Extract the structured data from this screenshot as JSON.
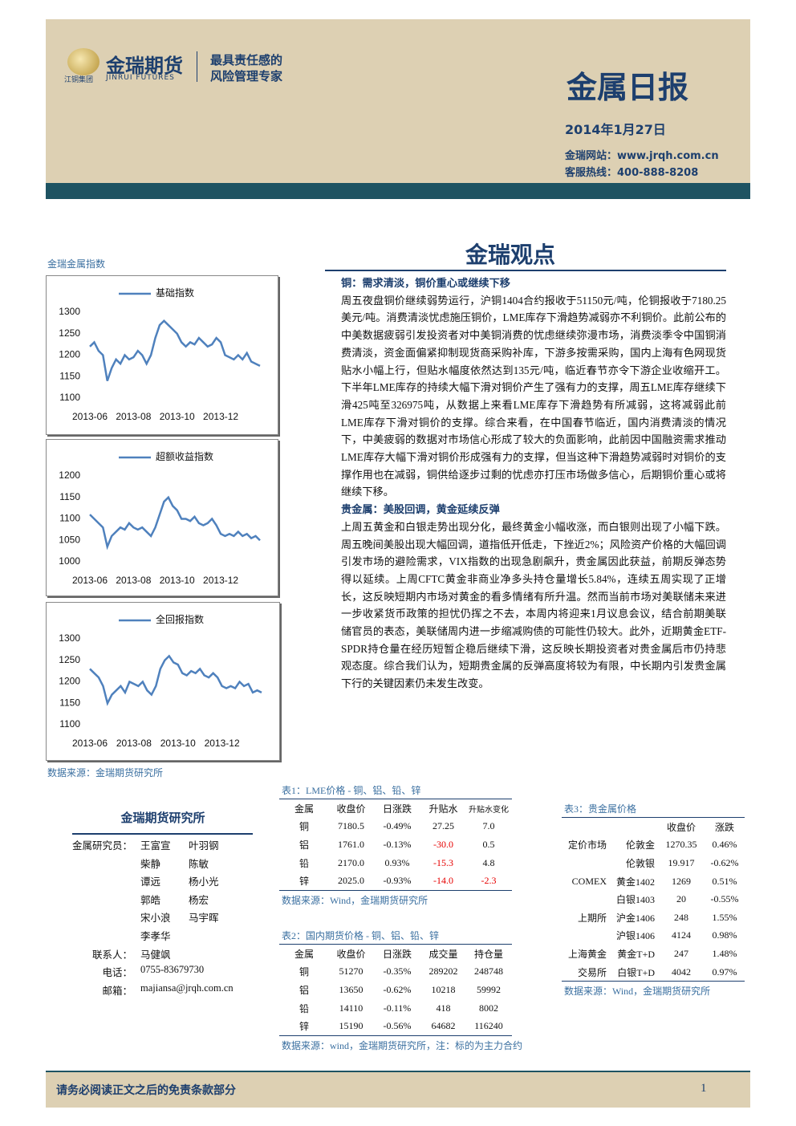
{
  "header": {
    "logo_name": "金瑞期货",
    "logo_sub": "JINRUI FUTURES",
    "group": "江铜集团",
    "slogan": [
      "最具责任感的",
      "风险管理专家"
    ],
    "title": "金属日报",
    "date": "2014年1月27日",
    "website": "金瑞网站：www.jrqh.com.cn",
    "hotline": "客服热线：400-888-8208"
  },
  "section_title": "金瑞观点",
  "chart_area_label": "金瑞金属指数",
  "chart_source": "数据来源：金瑞期货研究所",
  "chart_data": [
    {
      "type": "line",
      "series": [
        {
          "name": "基础指数",
          "color": "#4f81bd",
          "values": [
            1220,
            1230,
            1210,
            1200,
            1140,
            1170,
            1190,
            1180,
            1200,
            1190,
            1195,
            1210,
            1200,
            1180,
            1200,
            1240,
            1270,
            1280,
            1270,
            1260,
            1250,
            1230,
            1220,
            1230,
            1225,
            1240,
            1230,
            1220,
            1225,
            1240,
            1230,
            1200,
            1195,
            1190,
            1200,
            1190,
            1205,
            1185,
            1180,
            1175
          ]
        }
      ],
      "categories": [
        "2013-06",
        null,
        null,
        null,
        null,
        null,
        null,
        null,
        null,
        null,
        "2013-08",
        null,
        null,
        null,
        null,
        null,
        null,
        null,
        null,
        null,
        "2013-10",
        null,
        null,
        null,
        null,
        null,
        null,
        null,
        null,
        null,
        "2013-12",
        null,
        null,
        null,
        null,
        null,
        null,
        null,
        null,
        null
      ],
      "ylim": [
        1100,
        1300
      ],
      "yticks": [
        1100,
        1150,
        1200,
        1250,
        1300
      ]
    },
    {
      "type": "line",
      "series": [
        {
          "name": "超额收益指数",
          "color": "#4f81bd",
          "values": [
            1110,
            1100,
            1090,
            1080,
            1035,
            1060,
            1070,
            1080,
            1075,
            1090,
            1080,
            1075,
            1080,
            1070,
            1060,
            1080,
            1110,
            1140,
            1150,
            1130,
            1120,
            1100,
            1100,
            1095,
            1105,
            1090,
            1085,
            1090,
            1100,
            1085,
            1065,
            1060,
            1065,
            1060,
            1070,
            1060,
            1065,
            1055,
            1060,
            1050
          ]
        }
      ],
      "categories": [
        "2013-06",
        null,
        null,
        null,
        null,
        null,
        null,
        null,
        null,
        null,
        "2013-08",
        null,
        null,
        null,
        null,
        null,
        null,
        null,
        null,
        null,
        "2013-10",
        null,
        null,
        null,
        null,
        null,
        null,
        null,
        null,
        null,
        "2013-12",
        null,
        null,
        null,
        null,
        null,
        null,
        null,
        null,
        null
      ],
      "ylim": [
        1000,
        1200
      ],
      "yticks": [
        1000,
        1050,
        1100,
        1150,
        1200
      ]
    },
    {
      "type": "line",
      "series": [
        {
          "name": "全回报指数",
          "color": "#4f81bd",
          "values": [
            1230,
            1220,
            1210,
            1190,
            1150,
            1170,
            1180,
            1190,
            1175,
            1200,
            1195,
            1190,
            1200,
            1180,
            1170,
            1190,
            1230,
            1250,
            1260,
            1245,
            1240,
            1220,
            1215,
            1225,
            1220,
            1230,
            1215,
            1210,
            1220,
            1210,
            1190,
            1185,
            1190,
            1185,
            1200,
            1190,
            1195,
            1175,
            1180,
            1175
          ]
        }
      ],
      "categories": [
        "2013-06",
        null,
        null,
        null,
        null,
        null,
        null,
        null,
        null,
        null,
        "2013-08",
        null,
        null,
        null,
        null,
        null,
        null,
        null,
        null,
        null,
        "2013-10",
        null,
        null,
        null,
        null,
        null,
        null,
        null,
        null,
        null,
        "2013-12",
        null,
        null,
        null,
        null,
        null,
        null,
        null,
        null,
        null
      ],
      "ylim": [
        1100,
        1300
      ],
      "yticks": [
        1100,
        1150,
        1200,
        1250,
        1300
      ]
    }
  ],
  "article": [
    {
      "heading": "铜：需求清淡，铜价重心或继续下移",
      "body": "周五夜盘铜价继续弱势运行，沪铜1404合约报收于51150元/吨，伦铜报收于7180.25美元/吨。消费清淡忧虑施压铜价，LME库存下滑趋势减弱亦不利铜价。此前公布的中美数据疲弱引发投资者对中美铜消费的忧虑继续弥漫市场，消费淡季令中国铜消费清淡，资金面偏紧抑制现货商采购补库，下游多按需采购，国内上海有色网现货贴水小幅上行，但贴水幅度依然达到135元/吨，临近春节亦令下游企业收缩开工。下半年LME库存的持续大幅下滑对铜价产生了强有力的支撑，周五LME库存继续下滑425吨至326975吨，从数据上来看LME库存下滑趋势有所减弱，这将减弱此前LME库存下滑对铜价的支撑。综合来看，在中国春节临近，国内消费清淡的情况下，中美疲弱的数据对市场信心形成了较大的负面影响，此前因中国融资需求推动LME库存大幅下滑对铜价形成强有力的支撑，但当这种下滑趋势减弱时对铜价的支撑作用也在减弱，铜供给逐步过剩的忧虑亦打压市场做多信心，后期铜价重心或将继续下移。"
    },
    {
      "heading": "贵金属：美股回调，黄金延续反弹",
      "body": "上周五黄金和白银走势出现分化，最终黄金小幅收涨，而白银则出现了小幅下跌。周五晚间美股出现大幅回调，道指低开低走，下挫近2%；风险资产价格的大幅回调引发市场的避险需求，VIX指数的出现急剧飙升，贵金属因此获益，前期反弹态势得以延续。上周CFTC黄金非商业净多头持仓量增长5.84%，连续五周实现了正增长，这反映短期内市场对黄金的看多情绪有所升温。然而当前市场对美联储未来进一步收紧货币政策的担忧仍挥之不去，本周内将迎来1月议息会议，结合前期美联储官员的表态，美联储周内进一步缩减购债的可能性仍较大。此外，近期黄金ETF-SPDR持仓量在经历短暂企稳后继续下滑，这反映长期投资者对贵金属后市仍持悲观态度。综合我们认为，短期贵金属的反弹高度将较为有限，中长期内引发贵金属下行的关键因素仍未发生改变。"
    }
  ],
  "team": {
    "title": "金瑞期货研究所",
    "rows": [
      [
        "金属研究员：",
        "王富宣",
        "叶羽钢"
      ],
      [
        null,
        "柴静",
        "陈敏"
      ],
      [
        null,
        "谭远",
        "杨小光"
      ],
      [
        null,
        "郭皓",
        "杨宏"
      ],
      [
        null,
        "宋小浪",
        "马宇晖"
      ],
      [
        null,
        "李孝华"
      ],
      [
        "联系人：",
        "马健飒"
      ],
      [
        "电话：",
        "0755-83679730"
      ],
      [
        "邮箱：",
        "majiansa@jrqh.com.cn"
      ]
    ]
  },
  "tables": [
    {
      "title": "表1：LME价格 - 铜、铝、铅、锌",
      "header": [
        "金属",
        "收盘价",
        "日涨跌",
        "升贴水",
        "升贴水变化"
      ],
      "rows": [
        [
          "铜",
          "7180.5",
          "-0.49%",
          "27.25",
          "7.0"
        ],
        [
          "铝",
          "1761.0",
          "-0.13%",
          "-30.0",
          "0.5"
        ],
        [
          "铅",
          "2170.0",
          "0.93%",
          "-15.3",
          "4.8"
        ],
        [
          "锌",
          "2025.0",
          "-0.93%",
          "-14.0",
          "-2.3"
        ]
      ],
      "highlight_color": "#e60000",
      "highlight": [
        [
          1,
          3
        ],
        [
          2,
          3
        ],
        [
          3,
          3
        ],
        [
          3,
          4
        ]
      ],
      "source": "数据来源：Wind，金瑞期货研究所"
    },
    {
      "title": "表2：国内期货价格 - 铜、铝、铅、锌",
      "header": [
        "金属",
        "收盘价",
        "日涨跌",
        "成交量",
        "持仓量"
      ],
      "rows": [
        [
          "铜",
          "51270",
          "-0.35%",
          "289202",
          "248748"
        ],
        [
          "铝",
          "13650",
          "-0.62%",
          "10218",
          "59992"
        ],
        [
          "铅",
          "14110",
          "-0.11%",
          "418",
          "8002"
        ],
        [
          "锌",
          "15190",
          "-0.56%",
          "64682",
          "116240"
        ]
      ],
      "source": "数据来源：wind，金瑞期货研究所，注：标的为主力合约"
    },
    {
      "title": "表3：贵金属价格",
      "header": [
        "收盘价",
        "涨跌"
      ],
      "rows": [
        [
          "定价市场",
          "伦敦金",
          "1270.35",
          "0.46%"
        ],
        [
          null,
          "伦敦银",
          "19.917",
          "-0.62%"
        ],
        [
          "COMEX",
          "黄金1402",
          "1269",
          "0.51%"
        ],
        [
          null,
          "白银1403",
          "20",
          "-0.55%"
        ],
        [
          "上期所",
          "沪金1406",
          "248",
          "1.55%"
        ],
        [
          null,
          "沪银1406",
          "4124",
          "0.98%"
        ],
        [
          "上海黄金",
          "黄金T+D",
          "247",
          "1.48%"
        ],
        [
          "交易所",
          "白银T+D",
          "4042",
          "0.97%"
        ]
      ],
      "source": "数据来源：Wind，金瑞期货研究所"
    }
  ],
  "footer": {
    "disclaimer": "请务必阅读正文之后的免责条款部分",
    "page": "1"
  }
}
